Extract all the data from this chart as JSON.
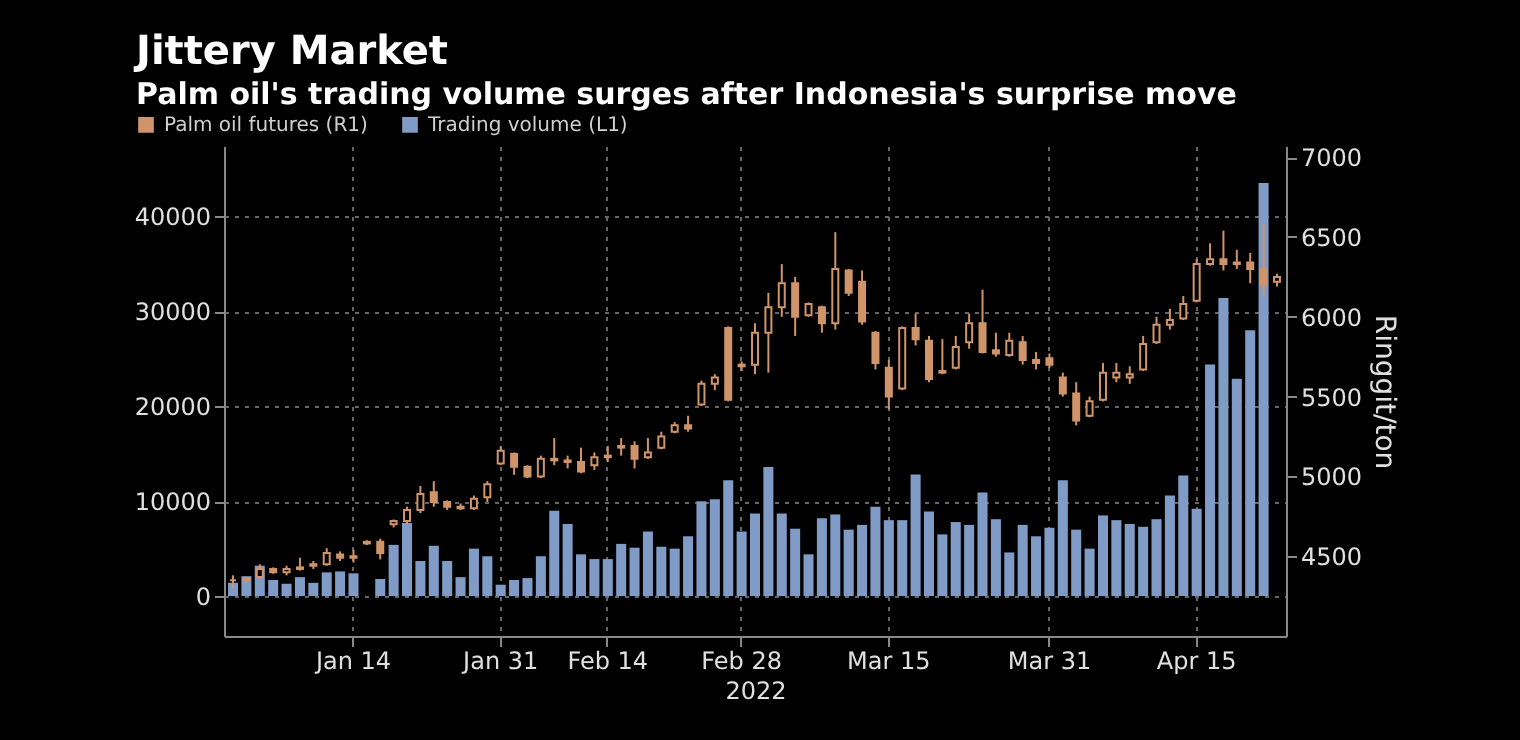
{
  "chart_data": {
    "type": "bar",
    "title": "Jittery Market",
    "subtitle": "Palm oil's trading volume surges after Indonesia's surprise move",
    "xlabel": "2022",
    "y2label": "Ringgit/ton",
    "categories": [
      null,
      null,
      null,
      null,
      null,
      null,
      null,
      null,
      null,
      "Jan 14",
      null,
      null,
      null,
      null,
      null,
      null,
      null,
      null,
      null,
      null,
      "Jan 31",
      null,
      null,
      null,
      null,
      null,
      null,
      null,
      "Feb 14",
      null,
      null,
      null,
      null,
      null,
      null,
      null,
      null,
      null,
      "Feb 28",
      null,
      null,
      null,
      null,
      null,
      null,
      null,
      null,
      null,
      null,
      "Mar 15",
      null,
      null,
      null,
      null,
      null,
      null,
      null,
      null,
      null,
      null,
      null,
      "Mar 31",
      null,
      null,
      null,
      null,
      null,
      null,
      null,
      null,
      null,
      null,
      "Apr 15",
      null,
      null,
      null,
      null,
      null,
      null
    ],
    "series": [
      {
        "name": "Palm oil futures (R1)",
        "type": "candlestick",
        "axis": "y2",
        "color": "#d0946a",
        "ohlc": [
          [
            4350,
            4380,
            4300,
            4350
          ],
          [
            4350,
            4370,
            4330,
            4360
          ],
          [
            4370,
            4450,
            4360,
            4420
          ],
          [
            4420,
            4430,
            4390,
            4400
          ],
          [
            4400,
            4440,
            4380,
            4420
          ],
          [
            4420,
            4490,
            4410,
            4430
          ],
          [
            4440,
            4470,
            4420,
            4450
          ],
          [
            4450,
            4550,
            4440,
            4520
          ],
          [
            4510,
            4530,
            4470,
            4490
          ],
          [
            4490,
            4540,
            4460,
            4500
          ],
          [
            4580,
            4600,
            4570,
            4590
          ],
          [
            4590,
            4610,
            4480,
            4520
          ],
          [
            4700,
            4730,
            4680,
            4720
          ],
          [
            4720,
            4810,
            4700,
            4790
          ],
          [
            4790,
            4940,
            4770,
            4890
          ],
          [
            4900,
            4970,
            4810,
            4840
          ],
          [
            4840,
            4850,
            4790,
            4810
          ],
          [
            4810,
            4830,
            4790,
            4800
          ],
          [
            4800,
            4880,
            4790,
            4860
          ],
          [
            4870,
            4970,
            4840,
            4950
          ],
          [
            5080,
            5190,
            5070,
            5160
          ],
          [
            5140,
            5150,
            5010,
            5060
          ],
          [
            5060,
            5070,
            4990,
            5000
          ],
          [
            5000,
            5130,
            4990,
            5110
          ],
          [
            5110,
            5240,
            5070,
            5100
          ],
          [
            5100,
            5130,
            5050,
            5090
          ],
          [
            5090,
            5180,
            5020,
            5030
          ],
          [
            5070,
            5150,
            5040,
            5120
          ],
          [
            5120,
            5190,
            5090,
            5130
          ],
          [
            5180,
            5240,
            5130,
            5190
          ],
          [
            5190,
            5220,
            5050,
            5110
          ],
          [
            5120,
            5240,
            5110,
            5150
          ],
          [
            5180,
            5280,
            5170,
            5250
          ],
          [
            5280,
            5340,
            5270,
            5320
          ],
          [
            5320,
            5380,
            5280,
            5300
          ],
          [
            5450,
            5600,
            5440,
            5580
          ],
          [
            5580,
            5640,
            5540,
            5620
          ],
          [
            5930,
            5940,
            5470,
            5480
          ],
          [
            5700,
            5720,
            5660,
            5690
          ],
          [
            5700,
            5960,
            5640,
            5900
          ],
          [
            5900,
            6150,
            5650,
            6060
          ],
          [
            6060,
            6330,
            6000,
            6210
          ],
          [
            6210,
            6250,
            5880,
            6000
          ],
          [
            6010,
            6090,
            6000,
            6080
          ],
          [
            6060,
            6070,
            5900,
            5960
          ],
          [
            5960,
            6530,
            5920,
            6300
          ],
          [
            6290,
            6300,
            6130,
            6150
          ],
          [
            6220,
            6290,
            5950,
            5970
          ],
          [
            5900,
            5910,
            5670,
            5710
          ],
          [
            5680,
            5730,
            5420,
            5500
          ],
          [
            5550,
            5940,
            5540,
            5930
          ],
          [
            5930,
            6020,
            5820,
            5860
          ],
          [
            5850,
            5880,
            5590,
            5610
          ],
          [
            5660,
            5860,
            5640,
            5650
          ],
          [
            5680,
            5880,
            5670,
            5810
          ],
          [
            5840,
            6020,
            5800,
            5960
          ],
          [
            5960,
            6170,
            5770,
            5780
          ],
          [
            5790,
            5900,
            5750,
            5770
          ],
          [
            5760,
            5900,
            5750,
            5850
          ],
          [
            5840,
            5880,
            5700,
            5730
          ],
          [
            5730,
            5780,
            5670,
            5710
          ],
          [
            5740,
            5770,
            5680,
            5700
          ],
          [
            5620,
            5650,
            5500,
            5520
          ],
          [
            5520,
            5590,
            5320,
            5350
          ],
          [
            5380,
            5500,
            5370,
            5470
          ],
          [
            5480,
            5710,
            5470,
            5650
          ],
          [
            5620,
            5710,
            5590,
            5650
          ],
          [
            5620,
            5690,
            5580,
            5640
          ],
          [
            5670,
            5880,
            5660,
            5830
          ],
          [
            5840,
            6000,
            5830,
            5950
          ],
          [
            5950,
            6050,
            5920,
            5980
          ],
          [
            5990,
            6130,
            5980,
            6080
          ],
          [
            6100,
            6360,
            6090,
            6330
          ],
          [
            6330,
            6460,
            6320,
            6360
          ],
          [
            6360,
            6540,
            6290,
            6330
          ],
          [
            6330,
            6420,
            6300,
            6340
          ],
          [
            6340,
            6400,
            6210,
            6300
          ],
          [
            6300,
            6580,
            6130,
            6200
          ],
          [
            6220,
            6270,
            6190,
            6250
          ]
        ]
      },
      {
        "name": "Trading volume (L1)",
        "type": "bar",
        "color": "#7f9bc6",
        "values": [
          1400,
          2100,
          3200,
          1700,
          1300,
          2000,
          1400,
          2500,
          2600,
          2400,
          null,
          1800,
          5400,
          7700,
          3700,
          5300,
          3700,
          2000,
          5000,
          4200,
          1200,
          1700,
          1900,
          4200,
          9000,
          7600,
          4400,
          3900,
          3900,
          5500,
          5100,
          6800,
          5200,
          5000,
          6300,
          10000,
          10200,
          12200,
          6800,
          8700,
          13600,
          8700,
          7100,
          4400,
          8200,
          8600,
          7000,
          7500,
          9400,
          8000,
          8000,
          12800,
          8900,
          6500,
          7800,
          7500,
          10900,
          8100,
          4600,
          7500,
          6300,
          7200,
          12200,
          7000,
          5000,
          8500,
          8000,
          7600,
          7300,
          8100,
          10600,
          12700,
          9200,
          24400,
          31400,
          22900,
          28000,
          43500,
          null
        ]
      }
    ],
    "ylim": [
      -4200,
      47400
    ],
    "yticks": [
      0,
      10000,
      20000,
      30000,
      40000
    ],
    "y2lim": [
      4000,
      7070
    ],
    "y2ticks": [
      4500,
      5000,
      5500,
      6000,
      6500,
      7000
    ],
    "grid": true,
    "legend": "top left"
  }
}
